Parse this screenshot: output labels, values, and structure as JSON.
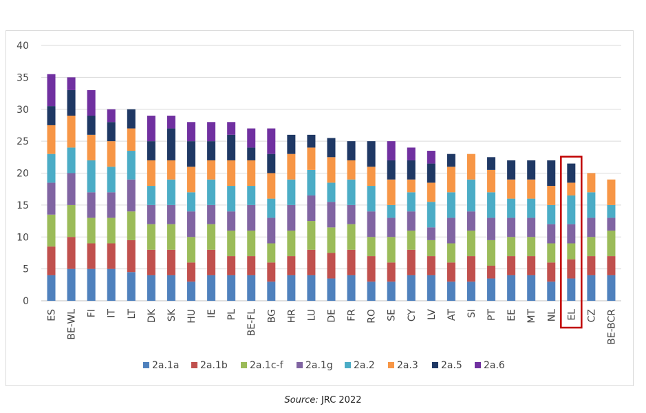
{
  "source": {
    "label": "Source:",
    "text": "JRC 2022"
  },
  "chart_data": {
    "type": "bar",
    "stacked": true,
    "title": "",
    "xlabel": "",
    "ylabel": "",
    "ylim": [
      0,
      40
    ],
    "yticks": [
      0,
      5,
      10,
      15,
      20,
      25,
      30,
      35,
      40
    ],
    "grid": true,
    "legend_position": "bottom",
    "highlight": "EL",
    "highlight_color": "#c00000",
    "categories": [
      "ES",
      "BE-WL",
      "FI",
      "IT",
      "LT",
      "DK",
      "SK",
      "HU",
      "IE",
      "PL",
      "BE-FL",
      "BG",
      "HR",
      "LU",
      "DE",
      "FR",
      "RO",
      "SE",
      "CY",
      "LV",
      "AT",
      "SI",
      "PT",
      "EE",
      "MT",
      "NL",
      "EL",
      "CZ",
      "BE-BCR"
    ],
    "series": [
      {
        "name": "2a.1a",
        "color": "#4f81bd",
        "values": [
          4,
          5,
          5,
          5,
          4.5,
          4,
          4,
          3,
          4,
          4,
          4,
          3,
          4,
          4,
          3.5,
          4,
          3,
          3,
          4,
          4,
          3,
          3,
          3.5,
          4,
          4,
          3,
          3.5,
          4,
          4
        ]
      },
      {
        "name": "2a.1b",
        "color": "#c0504d",
        "values": [
          4.5,
          5,
          4,
          4,
          5,
          4,
          4,
          3,
          4,
          3,
          3,
          3,
          3,
          4,
          4,
          4,
          4,
          3,
          4,
          3,
          3,
          4,
          2,
          3,
          3,
          3,
          3,
          3,
          3
        ]
      },
      {
        "name": "2a.1c-f",
        "color": "#9bbb59",
        "values": [
          5,
          5,
          4,
          4,
          4.5,
          4,
          4,
          4,
          4,
          4,
          4,
          3,
          4,
          4.5,
          4,
          4,
          3,
          4,
          3,
          2.5,
          3,
          4,
          4,
          3,
          3,
          3,
          2.5,
          3,
          4
        ]
      },
      {
        "name": "2a.1g",
        "color": "#8064a2",
        "values": [
          5,
          5,
          4,
          4,
          5,
          3,
          3,
          4,
          3,
          3,
          4,
          4,
          4,
          4,
          4,
          3,
          4,
          3,
          3,
          2,
          4,
          3,
          3.5,
          3,
          3,
          3,
          3,
          3,
          2
        ]
      },
      {
        "name": "2a.2",
        "color": "#4bacc6",
        "values": [
          4.5,
          4,
          5,
          4,
          4.5,
          3,
          4,
          3,
          4,
          4,
          3,
          3,
          4,
          4,
          3,
          4,
          4,
          2,
          3,
          4,
          4,
          5,
          4,
          3,
          3,
          3,
          4.5,
          4,
          2
        ]
      },
      {
        "name": "2a.3",
        "color": "#f79646",
        "values": [
          4.5,
          5,
          4,
          4,
          3.5,
          4,
          3,
          4,
          3,
          4,
          4,
          4,
          4,
          3.5,
          4,
          3,
          3,
          4,
          2,
          3,
          4,
          4,
          3.5,
          3,
          3,
          3,
          2,
          3,
          4
        ]
      },
      {
        "name": "2a.5",
        "color": "#1f3864",
        "values": [
          3,
          4,
          3,
          3,
          3,
          3,
          5,
          4,
          3,
          4,
          2,
          3,
          3,
          2,
          3,
          3,
          4,
          3,
          3,
          3,
          2,
          0,
          2,
          3,
          3,
          4,
          3,
          0,
          0
        ]
      },
      {
        "name": "2a.6",
        "color": "#7030a0",
        "values": [
          5,
          2,
          4,
          2,
          0,
          4,
          2,
          3,
          3,
          2,
          3,
          4,
          0,
          0,
          0,
          0,
          0,
          3,
          2,
          2,
          0,
          0,
          0,
          0,
          0,
          0,
          0,
          0,
          0
        ]
      }
    ]
  }
}
